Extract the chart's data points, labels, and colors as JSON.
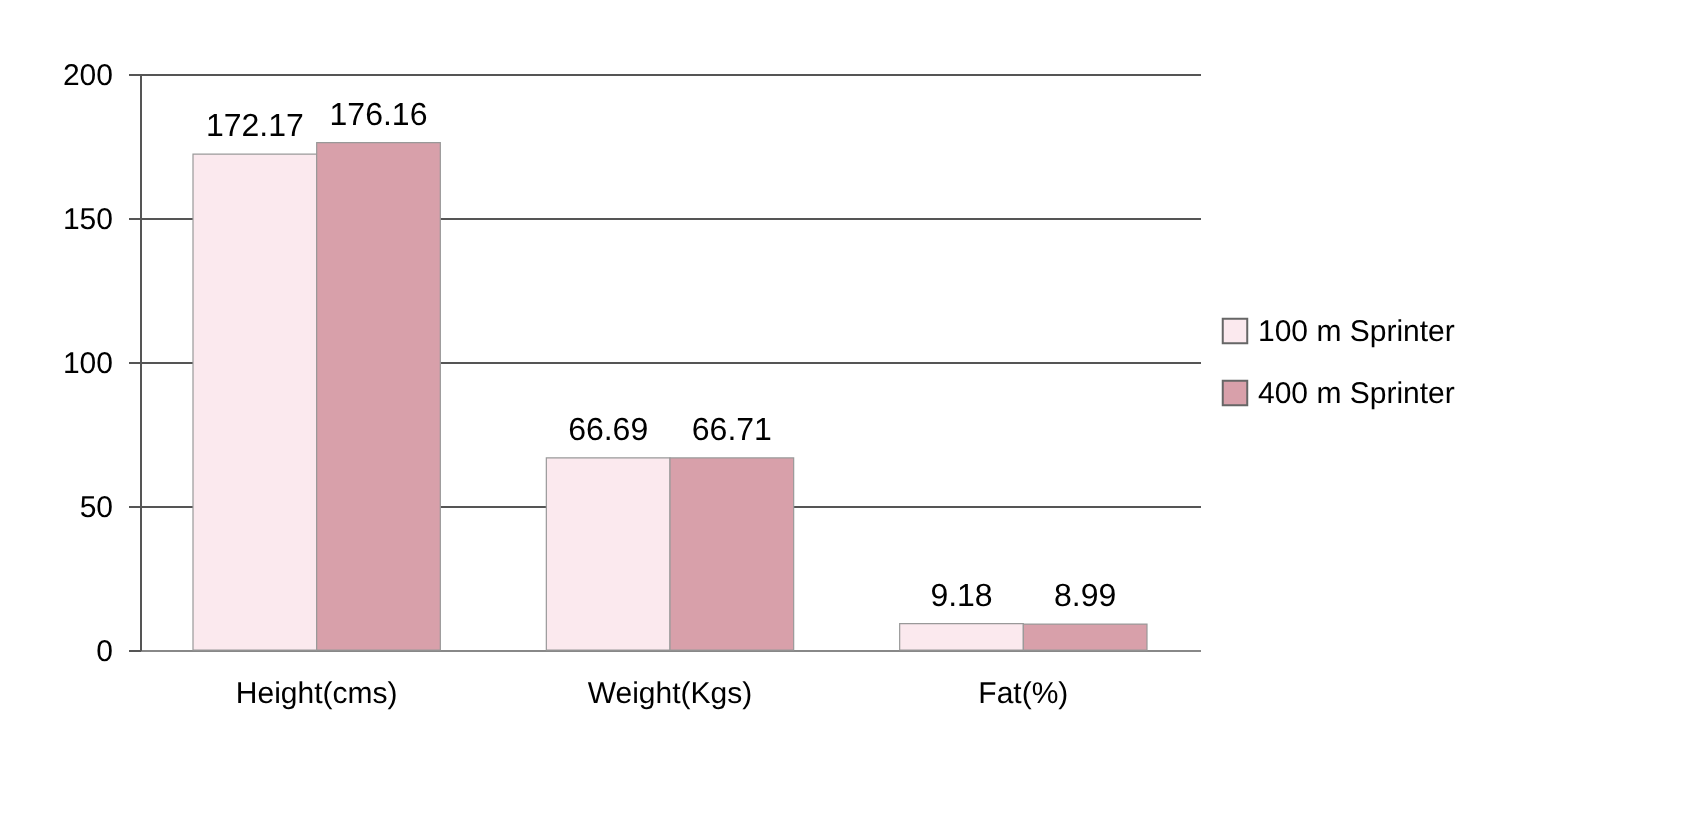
{
  "chart_data": {
    "type": "bar",
    "categories": [
      "Height(cms)",
      "Weight(Kgs)",
      "Fat(%)"
    ],
    "series": [
      {
        "name": "100 m Sprinter",
        "color": "#fbe9ee",
        "values": [
          172.17,
          66.69,
          9.18
        ]
      },
      {
        "name": "400 m Sprinter",
        "color": "#d8a0aa",
        "values": [
          176.16,
          66.71,
          8.99
        ]
      }
    ],
    "ylim": [
      0,
      200
    ],
    "yticks": [
      0,
      50,
      100,
      150,
      200
    ],
    "grid": "y",
    "legend": "right",
    "data_labels": true
  }
}
